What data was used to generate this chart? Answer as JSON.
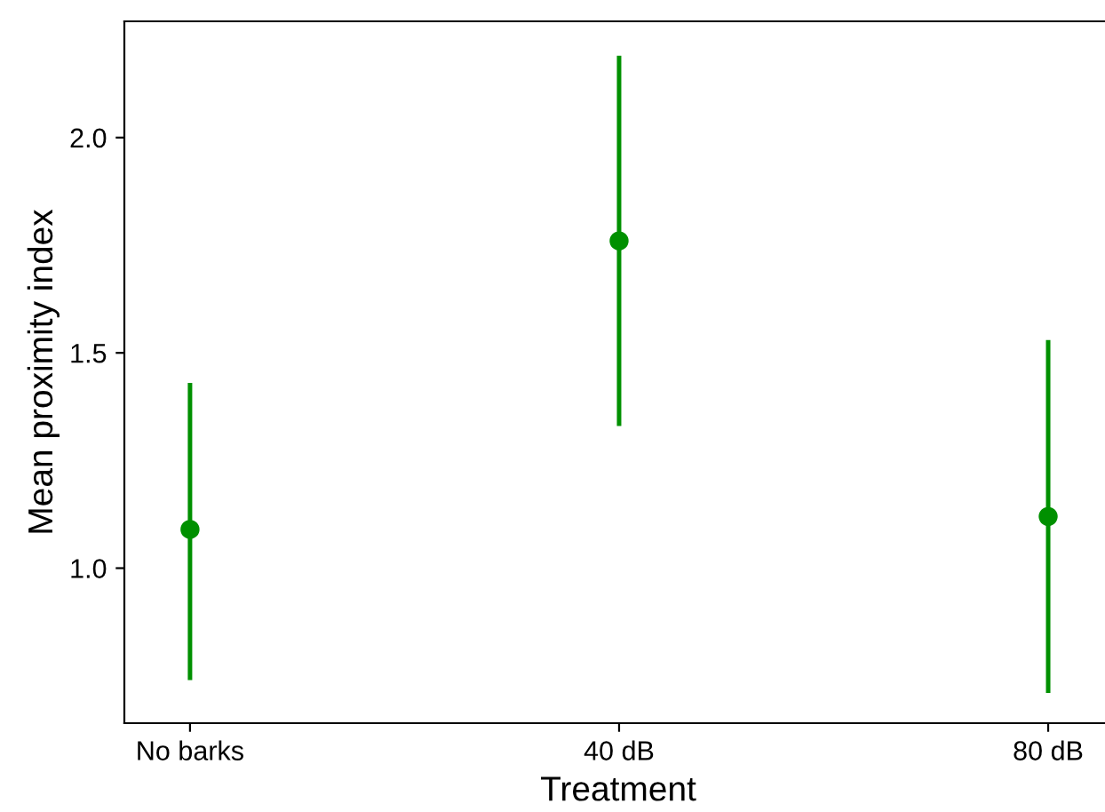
{
  "chart_data": {
    "type": "scatter",
    "xlabel": "Treatment",
    "ylabel": "Mean proximity index",
    "categories": [
      "No barks",
      "40 dB",
      "80 dB"
    ],
    "values": [
      1.09,
      1.76,
      1.12
    ],
    "errors": [
      [
        0.74,
        1.43
      ],
      [
        1.33,
        2.19
      ],
      [
        0.71,
        1.53
      ]
    ],
    "color": "#009000",
    "marker": "circle",
    "ylim": [
      0.64,
      2.27
    ],
    "yticks": [
      {
        "value": 1,
        "label": "1.0"
      },
      1.5,
      {
        "value": 2,
        "label": "2.0"
      }
    ],
    "grid": false
  }
}
